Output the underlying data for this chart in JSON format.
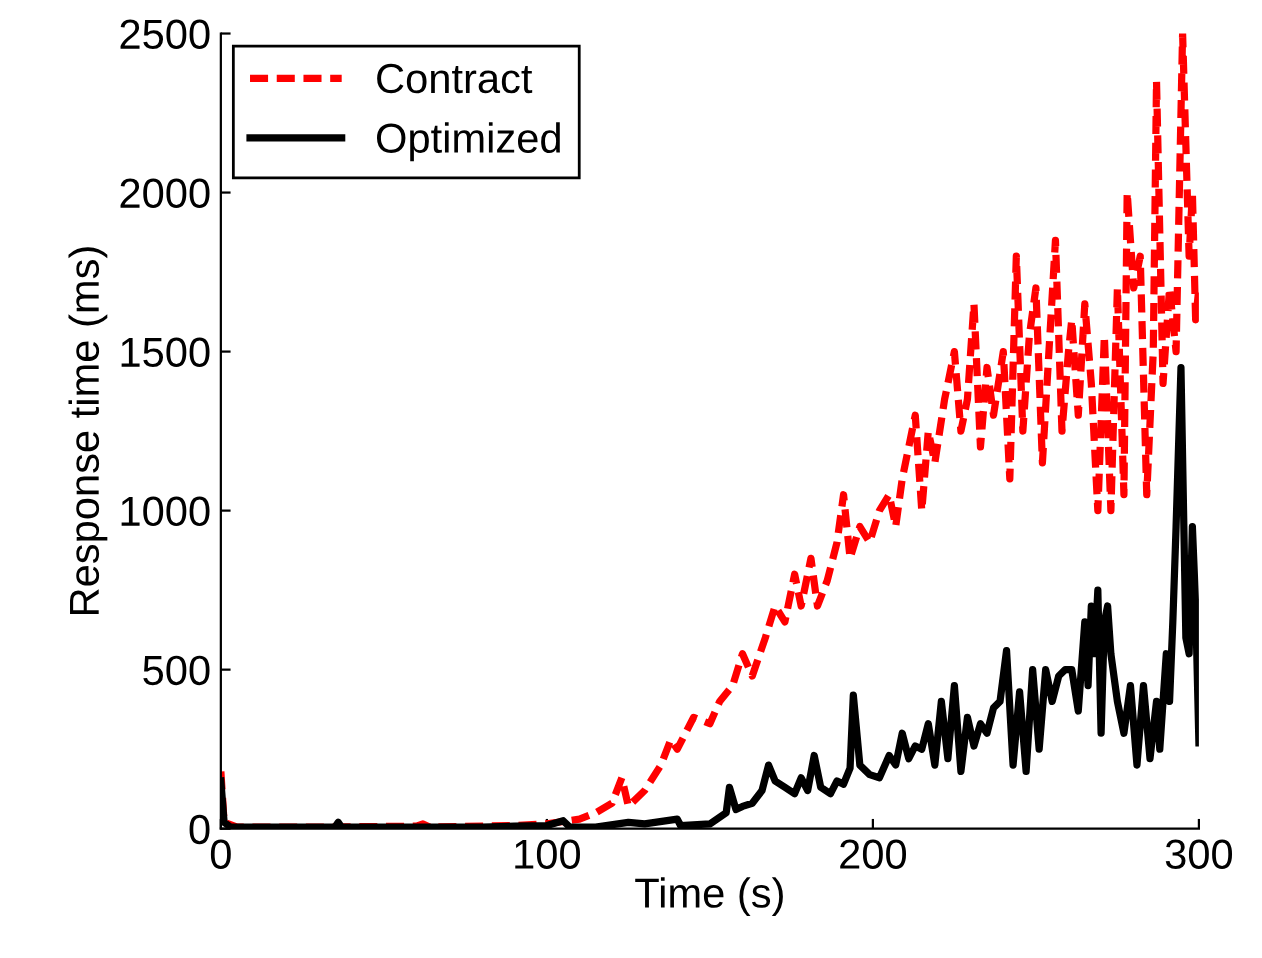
{
  "chart_data": {
    "type": "line",
    "xlabel": "Time (s)",
    "ylabel": "Response time (ms)",
    "xlim": [
      0,
      300
    ],
    "ylim": [
      0,
      2500
    ],
    "xticks": [
      0,
      100,
      200,
      300
    ],
    "yticks": [
      0,
      500,
      1000,
      1500,
      2000,
      2500
    ],
    "grid": false,
    "legend": "top left",
    "series": [
      {
        "name": "Contract",
        "color": "#ff0000",
        "line_style": "dashed",
        "x": [
          0,
          1,
          5,
          30,
          60,
          62,
          64,
          90,
          100,
          110,
          115,
          120,
          123,
          125,
          130,
          135,
          138,
          140,
          145,
          150,
          153,
          157,
          160,
          163,
          167,
          170,
          173,
          176,
          178,
          181,
          183,
          186,
          189,
          191,
          193,
          196,
          199,
          202,
          205,
          207,
          209,
          213,
          215,
          217,
          219,
          222,
          225,
          227,
          229,
          231,
          233,
          235,
          237,
          240,
          242,
          244,
          246,
          248,
          250,
          252,
          254,
          256,
          258,
          260,
          261,
          263,
          265,
          267,
          269,
          271,
          273,
          275,
          277,
          278,
          280,
          282,
          284,
          286,
          287,
          289,
          291,
          293,
          295,
          297,
          298,
          299,
          300
        ],
        "values": [
          180,
          20,
          5,
          5,
          8,
          15,
          5,
          10,
          15,
          30,
          50,
          80,
          160,
          70,
          120,
          200,
          280,
          250,
          350,
          330,
          400,
          450,
          550,
          480,
          600,
          700,
          650,
          800,
          700,
          850,
          700,
          780,
          900,
          1050,
          850,
          950,
          900,
          1000,
          1050,
          950,
          1100,
          1300,
          1000,
          1250,
          1150,
          1350,
          1500,
          1250,
          1350,
          1650,
          1200,
          1450,
          1300,
          1500,
          1100,
          1800,
          1250,
          1550,
          1700,
          1150,
          1500,
          1850,
          1250,
          1500,
          1600,
          1300,
          1650,
          1400,
          1000,
          1550,
          1000,
          1700,
          1050,
          2000,
          1700,
          1800,
          1050,
          1500,
          2350,
          1400,
          1700,
          1500,
          2500,
          1800,
          2000,
          1600,
          1700
        ]
      },
      {
        "name": "Optimized",
        "color": "#000000",
        "line_style": "solid",
        "x": [
          0,
          1,
          3,
          35,
          36,
          37,
          80,
          90,
          100,
          105,
          107,
          115,
          125,
          130,
          140,
          141,
          150,
          155,
          156,
          158,
          160,
          163,
          166,
          168,
          170,
          173,
          176,
          178,
          180,
          182,
          184,
          187,
          189,
          191,
          193,
          194,
          196,
          199,
          202,
          205,
          207,
          209,
          211,
          213,
          215,
          217,
          219,
          221,
          223,
          225,
          227,
          229,
          231,
          233,
          235,
          237,
          239,
          241,
          243,
          245,
          247,
          249,
          251,
          253,
          255,
          257,
          259,
          261,
          263,
          265,
          266,
          267,
          268,
          269,
          270,
          271,
          272,
          273,
          275,
          277,
          279,
          281,
          283,
          285,
          287,
          288,
          290,
          291,
          292,
          293,
          294.5,
          296,
          297,
          298,
          299,
          300
        ],
        "values": [
          150,
          20,
          5,
          5,
          20,
          5,
          5,
          8,
          10,
          25,
          5,
          5,
          20,
          15,
          30,
          10,
          15,
          50,
          130,
          60,
          70,
          80,
          120,
          200,
          150,
          130,
          110,
          160,
          120,
          230,
          130,
          110,
          150,
          140,
          190,
          420,
          200,
          170,
          160,
          230,
          200,
          300,
          220,
          260,
          250,
          330,
          200,
          400,
          220,
          450,
          180,
          350,
          260,
          330,
          300,
          380,
          400,
          560,
          200,
          430,
          180,
          500,
          250,
          500,
          400,
          480,
          500,
          500,
          370,
          650,
          450,
          700,
          550,
          750,
          300,
          650,
          700,
          550,
          400,
          300,
          450,
          200,
          450,
          220,
          400,
          250,
          550,
          400,
          650,
          950,
          1450,
          600,
          550,
          950,
          700,
          270
        ]
      }
    ]
  }
}
